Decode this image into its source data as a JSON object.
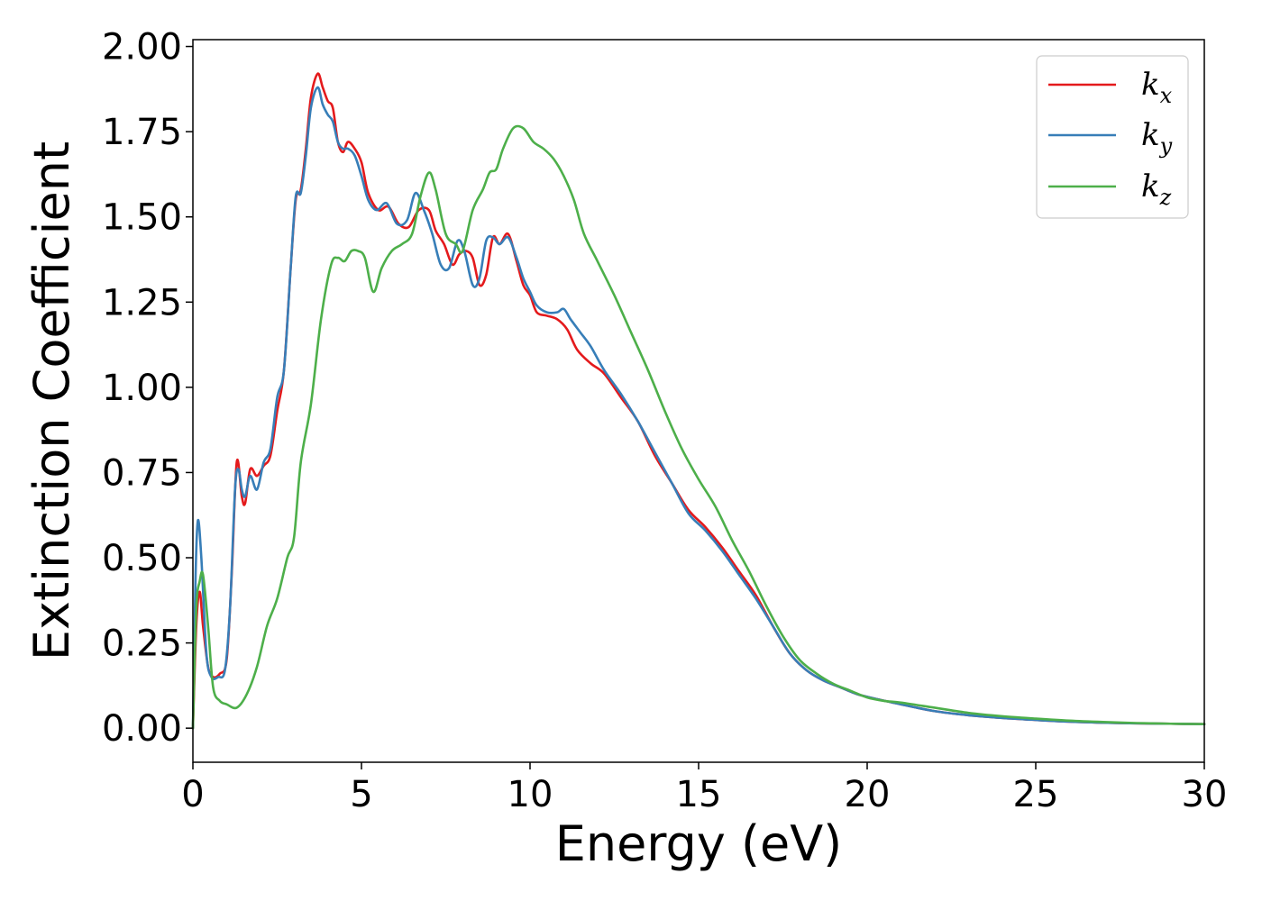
{
  "chart_data": {
    "type": "line",
    "xlabel": "Energy (eV)",
    "ylabel": "Extinction Coefficient",
    "xlim": [
      0,
      30
    ],
    "ylim": [
      -0.1,
      2.02
    ],
    "xticks": [
      0,
      5,
      10,
      15,
      20,
      25,
      30
    ],
    "yticks": [
      0.0,
      0.25,
      0.5,
      0.75,
      1.0,
      1.25,
      1.5,
      1.75,
      2.0
    ],
    "xtick_labels": [
      "0",
      "5",
      "10",
      "15",
      "20",
      "25",
      "30"
    ],
    "ytick_labels": [
      "0.00",
      "0.25",
      "0.50",
      "0.75",
      "1.00",
      "1.25",
      "1.50",
      "1.75",
      "2.00"
    ],
    "grid": false,
    "legend_position": "top-right",
    "series": [
      {
        "name": "k_x",
        "label_main": "k",
        "label_sub": "x",
        "color": "#e41a1c",
        "x": [
          0,
          0.1,
          0.2,
          0.3,
          0.45,
          0.6,
          0.8,
          1.0,
          1.15,
          1.3,
          1.45,
          1.55,
          1.7,
          1.9,
          2.1,
          2.3,
          2.5,
          2.7,
          2.9,
          3.05,
          3.2,
          3.35,
          3.5,
          3.7,
          3.85,
          4.0,
          4.15,
          4.3,
          4.45,
          4.6,
          4.8,
          5.0,
          5.2,
          5.5,
          5.8,
          6.1,
          6.4,
          6.7,
          7.0,
          7.2,
          7.45,
          7.7,
          7.9,
          8.1,
          8.3,
          8.5,
          8.7,
          8.9,
          9.1,
          9.35,
          9.6,
          9.8,
          10.0,
          10.2,
          10.5,
          10.8,
          11.1,
          11.4,
          11.8,
          12.2,
          12.7,
          13.2,
          13.7,
          14.2,
          14.7,
          15.2,
          15.7,
          16.2,
          16.7,
          17.2,
          17.7,
          18.2,
          18.7,
          19.2,
          19.7,
          20.3,
          21.0,
          22.0,
          23.0,
          24.0,
          25.0,
          26.0,
          27.0,
          28.0,
          29.0,
          30.0
        ],
        "y": [
          0.0,
          0.3,
          0.4,
          0.3,
          0.18,
          0.15,
          0.16,
          0.2,
          0.45,
          0.78,
          0.68,
          0.66,
          0.76,
          0.74,
          0.77,
          0.8,
          0.93,
          1.05,
          1.35,
          1.55,
          1.58,
          1.7,
          1.85,
          1.92,
          1.88,
          1.84,
          1.82,
          1.72,
          1.69,
          1.72,
          1.7,
          1.66,
          1.57,
          1.52,
          1.53,
          1.48,
          1.47,
          1.52,
          1.52,
          1.46,
          1.42,
          1.36,
          1.39,
          1.4,
          1.38,
          1.3,
          1.33,
          1.44,
          1.42,
          1.45,
          1.37,
          1.3,
          1.27,
          1.22,
          1.21,
          1.2,
          1.17,
          1.11,
          1.07,
          1.04,
          0.97,
          0.9,
          0.8,
          0.72,
          0.64,
          0.59,
          0.53,
          0.46,
          0.39,
          0.3,
          0.22,
          0.17,
          0.14,
          0.12,
          0.1,
          0.085,
          0.07,
          0.05,
          0.038,
          0.03,
          0.024,
          0.019,
          0.016,
          0.014,
          0.013,
          0.012
        ]
      },
      {
        "name": "k_y",
        "label_main": "k",
        "label_sub": "y",
        "color": "#377eb8",
        "x": [
          0,
          0.08,
          0.15,
          0.25,
          0.4,
          0.55,
          0.75,
          0.95,
          1.1,
          1.25,
          1.35,
          1.45,
          1.55,
          1.7,
          1.9,
          2.1,
          2.3,
          2.5,
          2.7,
          2.9,
          3.05,
          3.2,
          3.35,
          3.5,
          3.7,
          3.85,
          4.0,
          4.15,
          4.3,
          4.45,
          4.6,
          4.8,
          5.0,
          5.2,
          5.45,
          5.75,
          6.05,
          6.35,
          6.6,
          6.85,
          7.1,
          7.35,
          7.6,
          7.85,
          8.05,
          8.3,
          8.5,
          8.7,
          8.9,
          9.1,
          9.35,
          9.6,
          9.8,
          10.0,
          10.2,
          10.5,
          10.8,
          11.0,
          11.2,
          11.5,
          11.8,
          12.2,
          12.7,
          13.2,
          13.7,
          14.2,
          14.7,
          15.2,
          15.7,
          16.2,
          16.7,
          17.2,
          17.7,
          18.2,
          18.7,
          19.2,
          19.7,
          20.3,
          21.0,
          22.0,
          23.0,
          24.0,
          25.0,
          26.0,
          27.0,
          28.0,
          29.0,
          30.0
        ],
        "y": [
          0.0,
          0.45,
          0.61,
          0.5,
          0.22,
          0.15,
          0.15,
          0.17,
          0.35,
          0.7,
          0.76,
          0.7,
          0.68,
          0.74,
          0.7,
          0.78,
          0.82,
          0.97,
          1.05,
          1.35,
          1.56,
          1.57,
          1.68,
          1.82,
          1.88,
          1.83,
          1.8,
          1.78,
          1.72,
          1.7,
          1.7,
          1.68,
          1.62,
          1.55,
          1.52,
          1.54,
          1.48,
          1.49,
          1.57,
          1.52,
          1.45,
          1.36,
          1.35,
          1.43,
          1.4,
          1.3,
          1.32,
          1.43,
          1.44,
          1.42,
          1.44,
          1.38,
          1.32,
          1.28,
          1.24,
          1.22,
          1.22,
          1.23,
          1.2,
          1.16,
          1.12,
          1.05,
          0.98,
          0.9,
          0.81,
          0.72,
          0.63,
          0.58,
          0.52,
          0.45,
          0.38,
          0.3,
          0.22,
          0.17,
          0.14,
          0.12,
          0.1,
          0.085,
          0.07,
          0.05,
          0.038,
          0.03,
          0.024,
          0.019,
          0.016,
          0.014,
          0.013,
          0.012
        ]
      },
      {
        "name": "k_z",
        "label_main": "k",
        "label_sub": "z",
        "color": "#4daf4a",
        "x": [
          0,
          0.1,
          0.2,
          0.3,
          0.45,
          0.6,
          0.8,
          1.0,
          1.3,
          1.6,
          1.9,
          2.2,
          2.5,
          2.8,
          3.0,
          3.2,
          3.5,
          3.8,
          4.1,
          4.3,
          4.5,
          4.7,
          4.9,
          5.1,
          5.35,
          5.6,
          5.9,
          6.2,
          6.5,
          6.75,
          7.0,
          7.2,
          7.5,
          7.8,
          8.0,
          8.3,
          8.6,
          8.8,
          9.0,
          9.2,
          9.5,
          9.8,
          10.1,
          10.4,
          10.7,
          11.0,
          11.3,
          11.6,
          12.0,
          12.5,
          13.0,
          13.5,
          14.0,
          14.5,
          15.0,
          15.5,
          16.0,
          16.5,
          17.0,
          17.5,
          18.0,
          18.5,
          19.0,
          19.5,
          20.0,
          20.5,
          21.0,
          22.0,
          23.0,
          24.0,
          25.0,
          26.0,
          27.0,
          28.0,
          29.0,
          30.0
        ],
        "y": [
          0.0,
          0.35,
          0.43,
          0.45,
          0.3,
          0.12,
          0.08,
          0.07,
          0.06,
          0.1,
          0.18,
          0.3,
          0.38,
          0.5,
          0.56,
          0.78,
          0.95,
          1.2,
          1.36,
          1.38,
          1.37,
          1.4,
          1.4,
          1.38,
          1.28,
          1.35,
          1.4,
          1.42,
          1.45,
          1.56,
          1.63,
          1.58,
          1.45,
          1.42,
          1.4,
          1.52,
          1.58,
          1.63,
          1.64,
          1.7,
          1.76,
          1.76,
          1.72,
          1.7,
          1.67,
          1.62,
          1.55,
          1.45,
          1.37,
          1.27,
          1.16,
          1.05,
          0.93,
          0.82,
          0.73,
          0.65,
          0.55,
          0.46,
          0.36,
          0.27,
          0.2,
          0.16,
          0.13,
          0.11,
          0.09,
          0.08,
          0.075,
          0.06,
          0.045,
          0.035,
          0.028,
          0.022,
          0.018,
          0.015,
          0.013,
          0.012
        ]
      }
    ]
  }
}
